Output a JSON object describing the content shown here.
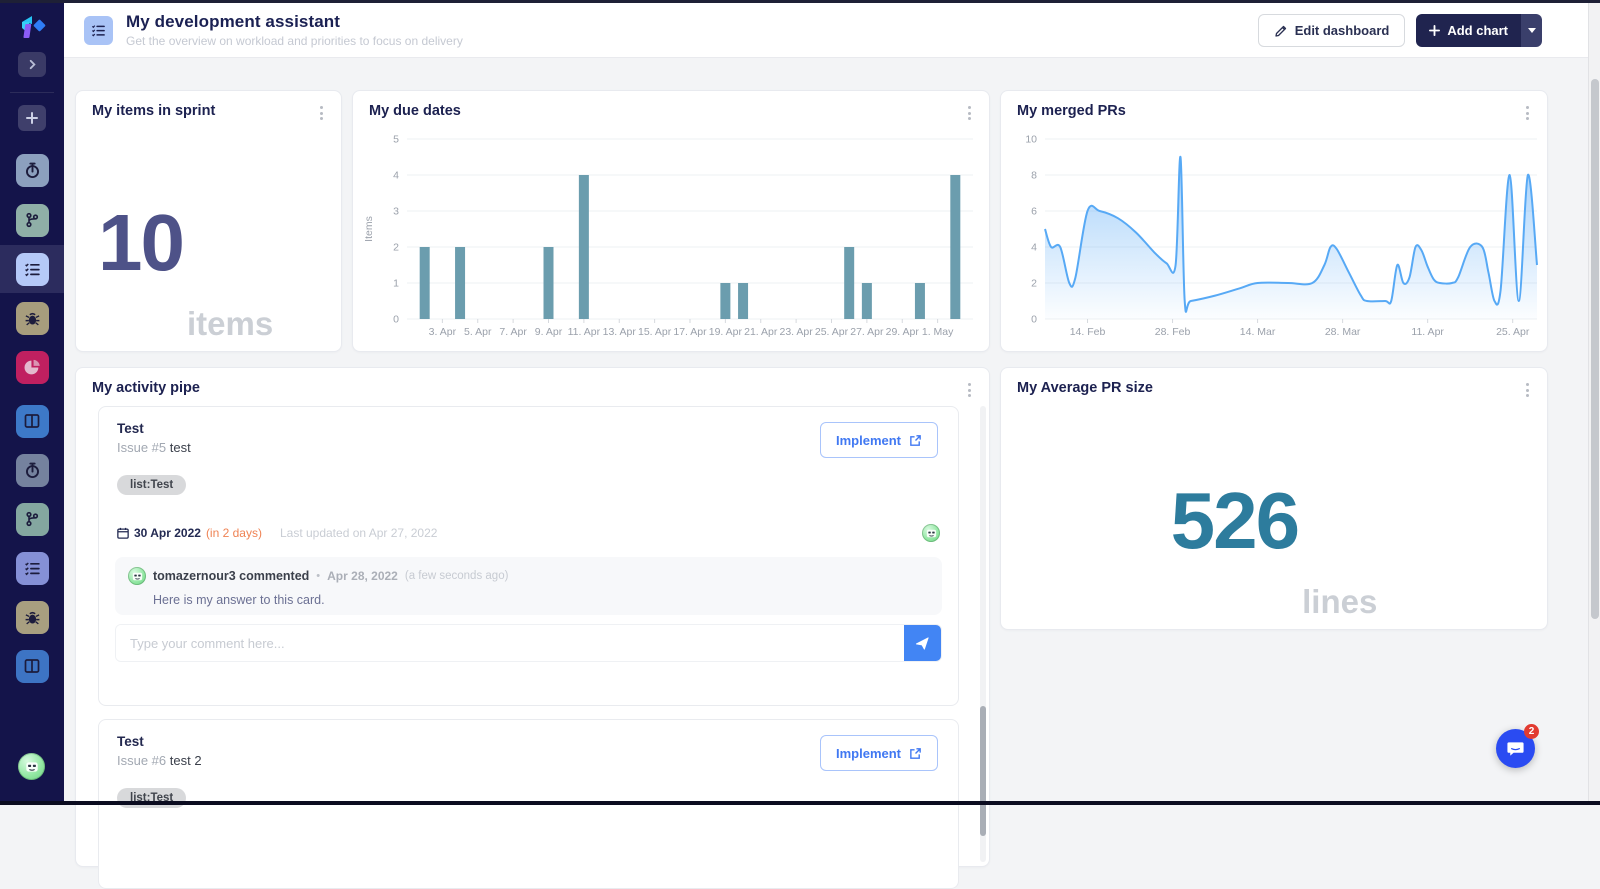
{
  "header": {
    "title": "My development assistant",
    "subtitle": "Get the overview on workload and priorities to focus on delivery",
    "edit_button": "Edit dashboard",
    "add_chart_button": "Add chart"
  },
  "sidebar": {
    "items": [
      {
        "name": "timer-board",
        "color": "#8ca0be"
      },
      {
        "name": "git-board",
        "color": "#8fafa7"
      },
      {
        "name": "checklist-board-active",
        "color": "#b5c9f8",
        "active": true
      },
      {
        "name": "bug-board",
        "color": "#a79d7d"
      },
      {
        "name": "pie-board",
        "color": "#c02060"
      },
      {
        "name": "columns-board",
        "color": "#3d79c8"
      },
      {
        "name": "timer-board-2",
        "color": "#75829e"
      },
      {
        "name": "git-board-2",
        "color": "#84a7a0"
      },
      {
        "name": "checklist-board-2",
        "color": "#8590d6"
      },
      {
        "name": "bug-board-2",
        "color": "#a89f80"
      },
      {
        "name": "columns-board-2",
        "color": "#3d74c4"
      }
    ]
  },
  "cards": {
    "sprint": {
      "title": "My items in sprint",
      "value": "10",
      "unit": "items"
    },
    "due_dates": {
      "title": "My due dates"
    },
    "merged_prs": {
      "title": "My merged PRs"
    },
    "activity": {
      "title": "My activity pipe"
    },
    "avg_pr": {
      "title": "My Average PR size",
      "value": "526",
      "unit": "lines"
    }
  },
  "chart_data": [
    {
      "type": "bar",
      "title": "My due dates",
      "ylabel": "Items",
      "ylim": [
        0,
        5
      ],
      "yticks": [
        0,
        1,
        2,
        3,
        4,
        5
      ],
      "x_domain": [
        0,
        32
      ],
      "x_unit": "days since 1 Apr 2022",
      "color": "#6b9dae",
      "bars": [
        {
          "x": 1,
          "label": "2. Apr",
          "value": 2
        },
        {
          "x": 3,
          "label": "4. Apr",
          "value": 2
        },
        {
          "x": 8,
          "label": "9. Apr",
          "value": 2
        },
        {
          "x": 10,
          "label": "11. Apr",
          "value": 4
        },
        {
          "x": 18,
          "label": "19. Apr",
          "value": 1
        },
        {
          "x": 19,
          "label": "20. Apr",
          "value": 1
        },
        {
          "x": 25,
          "label": "26. Apr",
          "value": 2
        },
        {
          "x": 26,
          "label": "27. Apr",
          "value": 1
        },
        {
          "x": 29,
          "label": "30. Apr",
          "value": 1
        },
        {
          "x": 31,
          "label": "2. May",
          "value": 4
        }
      ],
      "xticks": [
        {
          "x": 2,
          "label": "3. Apr"
        },
        {
          "x": 4,
          "label": "5. Apr"
        },
        {
          "x": 6,
          "label": "7. Apr"
        },
        {
          "x": 8,
          "label": "9. Apr"
        },
        {
          "x": 10,
          "label": "11. Apr"
        },
        {
          "x": 12,
          "label": "13. Apr"
        },
        {
          "x": 14,
          "label": "15. Apr"
        },
        {
          "x": 16,
          "label": "17. Apr"
        },
        {
          "x": 18,
          "label": "19. Apr"
        },
        {
          "x": 20,
          "label": "21. Apr"
        },
        {
          "x": 22,
          "label": "23. Apr"
        },
        {
          "x": 24,
          "label": "25. Apr"
        },
        {
          "x": 26,
          "label": "27. Apr"
        },
        {
          "x": 28,
          "label": "29. Apr"
        },
        {
          "x": 30,
          "label": "1. May"
        }
      ]
    },
    {
      "type": "area",
      "title": "My merged PRs",
      "ylim": [
        0,
        10
      ],
      "yticks": [
        0,
        2,
        4,
        6,
        8,
        10
      ],
      "x_domain": [
        0,
        81
      ],
      "x_unit": "days since 7 Feb 2022",
      "color": "#57a9f5",
      "points": [
        [
          0,
          5
        ],
        [
          1,
          4
        ],
        [
          2.5,
          4
        ],
        [
          4,
          2
        ],
        [
          5,
          2.3
        ],
        [
          7,
          6
        ],
        [
          9,
          6
        ],
        [
          12,
          5.6
        ],
        [
          15,
          4.8
        ],
        [
          18,
          3.7
        ],
        [
          20,
          3.1
        ],
        [
          21.5,
          3
        ],
        [
          22.3,
          9
        ],
        [
          23,
          1
        ],
        [
          24,
          1
        ],
        [
          28,
          1.3
        ],
        [
          32,
          1.7
        ],
        [
          35,
          2
        ],
        [
          40,
          2
        ],
        [
          44,
          2
        ],
        [
          46,
          3
        ],
        [
          47,
          4
        ],
        [
          48,
          3.9
        ],
        [
          50,
          2.6
        ],
        [
          52,
          1.3
        ],
        [
          53,
          1
        ],
        [
          56,
          1
        ],
        [
          57,
          1
        ],
        [
          58,
          3
        ],
        [
          59,
          2
        ],
        [
          60,
          2.3
        ],
        [
          61,
          4
        ],
        [
          62,
          3.8
        ],
        [
          63,
          2.9
        ],
        [
          64,
          2.2
        ],
        [
          65,
          2
        ],
        [
          67,
          2
        ],
        [
          68,
          2.3
        ],
        [
          70,
          4
        ],
        [
          72,
          4
        ],
        [
          73,
          2.6
        ],
        [
          74,
          1
        ],
        [
          75,
          1.6
        ],
        [
          76.5,
          8
        ],
        [
          78,
          1
        ],
        [
          79.5,
          8
        ],
        [
          81,
          3
        ]
      ],
      "xticks": [
        {
          "x": 7,
          "label": "14. Feb"
        },
        {
          "x": 21,
          "label": "28. Feb"
        },
        {
          "x": 35,
          "label": "14. Mar"
        },
        {
          "x": 49,
          "label": "28. Mar"
        },
        {
          "x": 63,
          "label": "11. Apr"
        },
        {
          "x": 77,
          "label": "25. Apr"
        }
      ]
    }
  ],
  "activity": {
    "issues": [
      {
        "title": "Test",
        "ref": "Issue #5",
        "name": "test",
        "button": "Implement",
        "tag": "list:Test",
        "due_date": "30 Apr 2022",
        "due_relative": "(in 2 days)",
        "last_updated": "Last updated on Apr 27, 2022",
        "comment": {
          "author": "tomazernour3 commented",
          "separator": "•",
          "date": "Apr 28, 2022",
          "relative": "(a few seconds ago)",
          "text": "Here is my answer to this card."
        },
        "comment_placeholder": "Type your comment here..."
      },
      {
        "title": "Test",
        "ref": "Issue #6",
        "name": "test 2",
        "button": "Implement",
        "tag": "list:Test"
      }
    ]
  },
  "chat": {
    "badge": "2"
  },
  "colors": {
    "sidebar_bg": "#14144a",
    "accent_blue": "#4285f4",
    "bar_teal": "#6b9dae",
    "line_blue": "#57a9f5",
    "sprint_number": "#4e5288",
    "avg_number": "#2d7c9d",
    "due_relative_orange": "#ef8354",
    "add_chart_navy": "#20244f",
    "chat_blue": "#2a4bf2",
    "badge_red": "#e23b31"
  }
}
